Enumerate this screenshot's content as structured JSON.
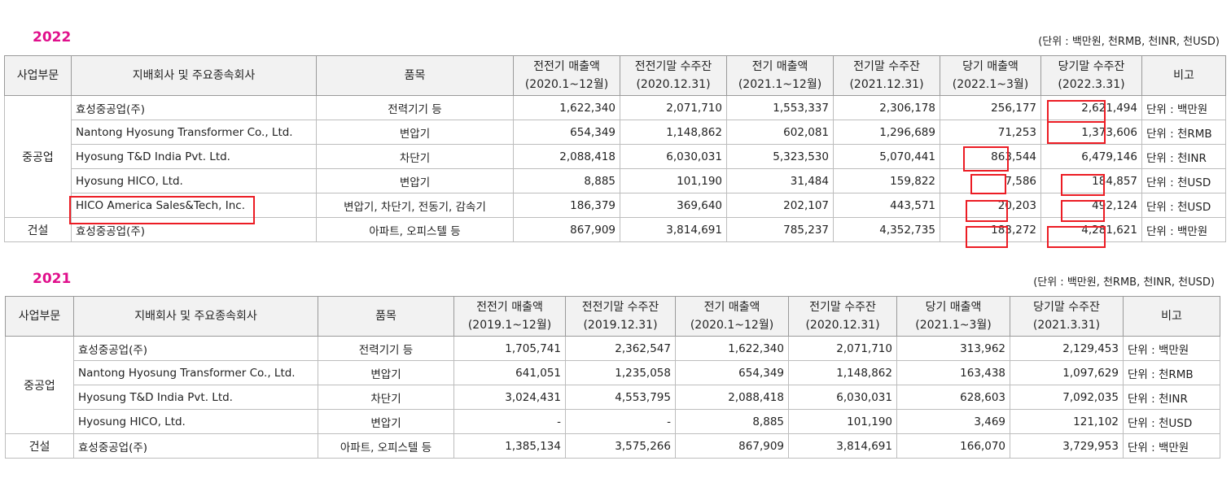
{
  "t2022": {
    "year": "2022",
    "unit_note": "(단위 : 백만원, 천RMB, 천INR, 천USD)",
    "headers": {
      "segment": "사업부문",
      "company": "지배회사 및 주요종속회사",
      "item": "품목",
      "c1": "전전기 매출액",
      "c1s": "(2020.1~12월)",
      "c2": "전전기말 수주잔",
      "c2s": "(2020.12.31)",
      "c3": "전기 매출액",
      "c3s": "(2021.1~12월)",
      "c4": "전기말 수주잔",
      "c4s": "(2021.12.31)",
      "c5": "당기 매출액",
      "c5s": "(2022.1~3월)",
      "c6": "당기말 수주잔",
      "c6s": "(2022.3.31)",
      "note": "비고"
    },
    "segments": [
      "중공업",
      "건설"
    ],
    "rows": [
      {
        "company": "효성중공업(주)",
        "item": "전력기기 등",
        "c1": "1,622,340",
        "c2": "2,071,710",
        "c3": "1,553,337",
        "c4": "2,306,178",
        "c5": "256,177",
        "c6": "2,621,494",
        "note": "단위 : 백만원"
      },
      {
        "company": "Nantong Hyosung Transformer Co., Ltd.",
        "item": "변압기",
        "c1": "654,349",
        "c2": "1,148,862",
        "c3": "602,081",
        "c4": "1,296,689",
        "c5": "71,253",
        "c6": "1,373,606",
        "note": "단위 : 천RMB"
      },
      {
        "company": "Hyosung T&D India Pvt. Ltd.",
        "item": "차단기",
        "c1": "2,088,418",
        "c2": "6,030,031",
        "c3": "5,323,530",
        "c4": "5,070,441",
        "c5": "863,544",
        "c6": "6,479,146",
        "note": "단위 : 천INR"
      },
      {
        "company": "Hyosung HICO, Ltd.",
        "item": "변압기",
        "c1": "8,885",
        "c2": "101,190",
        "c3": "31,484",
        "c4": "159,822",
        "c5": "7,586",
        "c6": "184,857",
        "note": "단위 : 천USD"
      },
      {
        "company": "HICO America Sales&Tech, Inc.",
        "item": "변압기, 차단기, 전동기, 감속기",
        "c1": "186,379",
        "c2": "369,640",
        "c3": "202,107",
        "c4": "443,571",
        "c5": "20,203",
        "c6": "492,124",
        "note": "단위 : 천USD"
      },
      {
        "company": "효성중공업(주)",
        "item": "아파트, 오피스텔 등",
        "c1": "867,909",
        "c2": "3,814,691",
        "c3": "785,237",
        "c4": "4,352,735",
        "c5": "183,272",
        "c6": "4,281,621",
        "note": "단위 : 백만원"
      }
    ]
  },
  "t2021": {
    "year": "2021",
    "unit_note": "(단위 : 백만원, 천RMB, 천INR, 천USD)",
    "headers": {
      "segment": "사업부문",
      "company": "지배회사 및 주요종속회사",
      "item": "품목",
      "c1": "전전기 매출액",
      "c1s": "(2019.1~12월)",
      "c2": "전전기말 수주잔",
      "c2s": "(2019.12.31)",
      "c3": "전기 매출액",
      "c3s": "(2020.1~12월)",
      "c4": "전기말 수주잔",
      "c4s": "(2020.12.31)",
      "c5": "당기 매출액",
      "c5s": "(2021.1~3월)",
      "c6": "당기말 수주잔",
      "c6s": "(2021.3.31)",
      "note": "비고"
    },
    "segments": [
      "중공업",
      "건설"
    ],
    "rows": [
      {
        "company": "효성중공업(주)",
        "item": "전력기기 등",
        "c1": "1,705,741",
        "c2": "2,362,547",
        "c3": "1,622,340",
        "c4": "2,071,710",
        "c5": "313,962",
        "c6": "2,129,453",
        "note": "단위 : 백만원"
      },
      {
        "company": "Nantong Hyosung Transformer Co., Ltd.",
        "item": "변압기",
        "c1": "641,051",
        "c2": "1,235,058",
        "c3": "654,349",
        "c4": "1,148,862",
        "c5": "163,438",
        "c6": "1,097,629",
        "note": "단위 : 천RMB"
      },
      {
        "company": "Hyosung T&D India Pvt. Ltd.",
        "item": "차단기",
        "c1": "3,024,431",
        "c2": "4,553,795",
        "c3": "2,088,418",
        "c4": "6,030,031",
        "c5": "628,603",
        "c6": "7,092,035",
        "note": "단위 : 천INR"
      },
      {
        "company": "Hyosung HICO, Ltd.",
        "item": "변압기",
        "c1": "-",
        "c2": "-",
        "c3": "8,885",
        "c4": "101,190",
        "c5": "3,469",
        "c6": "121,102",
        "note": "단위 : 천USD"
      },
      {
        "company": "효성중공업(주)",
        "item": "아파트, 오피스텔 등",
        "c1": "1,385,134",
        "c2": "3,575,266",
        "c3": "867,909",
        "c4": "3,814,691",
        "c5": "166,070",
        "c6": "3,729,953",
        "note": "단위 : 백만원"
      }
    ]
  },
  "highlight_color": "#ec1c24",
  "year_color": "#e0108c"
}
